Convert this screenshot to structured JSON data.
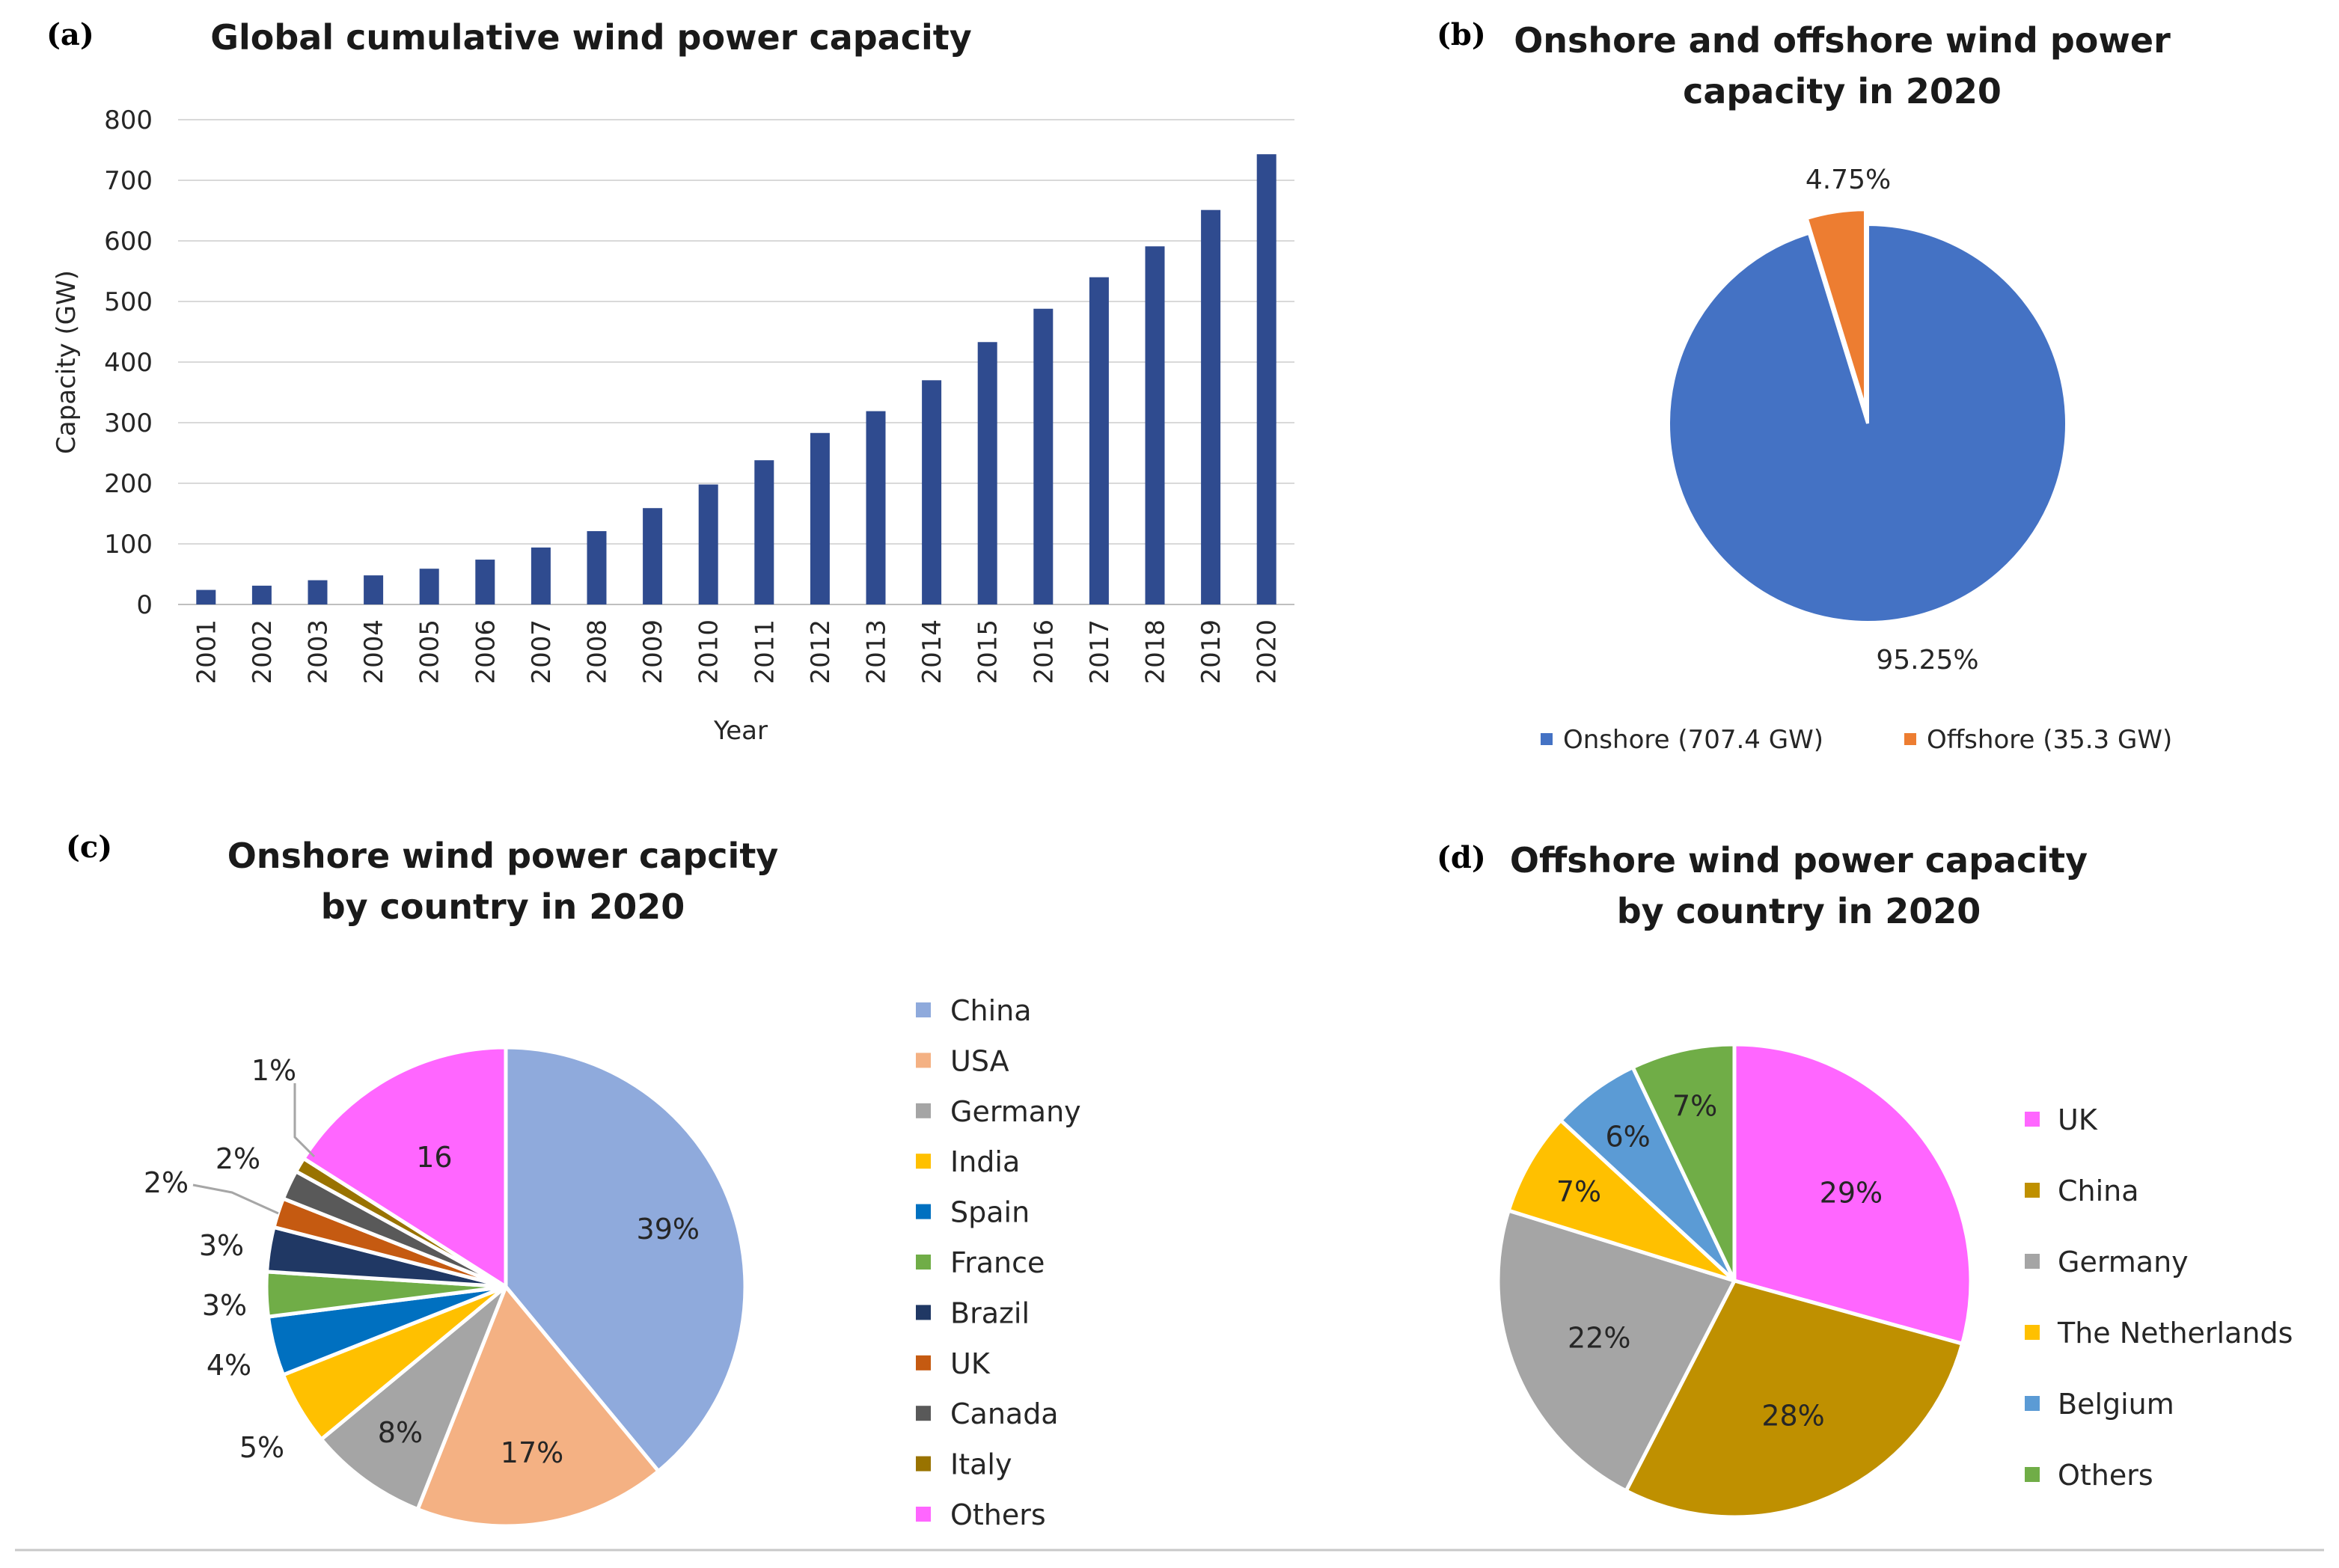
{
  "chart_data": [
    {
      "id": "a",
      "panel_label": "(a)",
      "type": "bar",
      "title": "Global cumulative wind power capacity",
      "xlabel": "Year",
      "ylabel": "Capacity (GW)",
      "ylim": [
        0,
        800
      ],
      "yticks": [
        0,
        100,
        200,
        300,
        400,
        500,
        600,
        700,
        800
      ],
      "grid": true,
      "color": "#2f4b8f",
      "categories": [
        "2001",
        "2002",
        "2003",
        "2004",
        "2005",
        "2006",
        "2007",
        "2008",
        "2009",
        "2010",
        "2011",
        "2012",
        "2013",
        "2014",
        "2015",
        "2016",
        "2017",
        "2018",
        "2019",
        "2020"
      ],
      "values": [
        24,
        31,
        40,
        48,
        59,
        74,
        94,
        121,
        159,
        198,
        238,
        283,
        319,
        370,
        433,
        488,
        540,
        591,
        651,
        743
      ]
    },
    {
      "id": "b",
      "panel_label": "(b)",
      "type": "pie",
      "title": [
        "Onshore and offshore wind power",
        "capacity in 2020"
      ],
      "legend_position": "bottom",
      "slices": [
        {
          "name": "Onshore",
          "legend": "Onshore (707.4 GW)",
          "value": 707.4,
          "label": "95.25%",
          "color": "#4472c4"
        },
        {
          "name": "Offshore",
          "legend": "Offshore  (35.3 GW)",
          "value": 35.3,
          "label": "4.75%",
          "color": "#ed7d31"
        }
      ]
    },
    {
      "id": "c",
      "panel_label": "(c)",
      "type": "pie",
      "title": [
        "Onshore wind power capcity",
        "by country in 2020"
      ],
      "legend_position": "right",
      "slices": [
        {
          "name": "China",
          "value": 39,
          "label": "39%",
          "color": "#8faadc"
        },
        {
          "name": "USA",
          "value": 17,
          "label": "17%",
          "color": "#f4b183"
        },
        {
          "name": "Germany",
          "value": 8,
          "label": "8%",
          "color": "#a5a5a5"
        },
        {
          "name": "India",
          "value": 5,
          "label": "5%",
          "color": "#ffc000"
        },
        {
          "name": "Spain",
          "value": 4,
          "label": "4%",
          "color": "#0070c0"
        },
        {
          "name": "France",
          "value": 3,
          "label": "3%",
          "color": "#70ad47"
        },
        {
          "name": "Brazil",
          "value": 3,
          "label": "3%",
          "color": "#203864"
        },
        {
          "name": "UK",
          "value": 2,
          "label": "2%",
          "color": "#c55a11"
        },
        {
          "name": "Canada",
          "value": 2,
          "label": "2%",
          "color": "#595959"
        },
        {
          "name": "Italy",
          "value": 1,
          "label": "1%",
          "color": "#997300"
        },
        {
          "name": "Others",
          "value": 16,
          "label": "16",
          "color": "#ff66ff"
        }
      ]
    },
    {
      "id": "d",
      "panel_label": "(d)",
      "type": "pie",
      "title": [
        "Offshore wind power capacity",
        "by country in 2020"
      ],
      "legend_position": "right",
      "slices": [
        {
          "name": "UK",
          "value": 29,
          "label": "29%",
          "color": "#ff66ff"
        },
        {
          "name": "China",
          "value": 28,
          "label": "28%",
          "color": "#bf9000"
        },
        {
          "name": "Germany",
          "value": 22,
          "label": "22%",
          "color": "#a5a5a5"
        },
        {
          "name": "The Netherlands",
          "value": 7,
          "label": "7%",
          "color": "#ffc000"
        },
        {
          "name": "Belgium",
          "value": 6,
          "label": "6%",
          "color": "#5b9bd5"
        },
        {
          "name": "Others",
          "value": 7,
          "label": "7%",
          "color": "#70ad47"
        }
      ]
    }
  ]
}
